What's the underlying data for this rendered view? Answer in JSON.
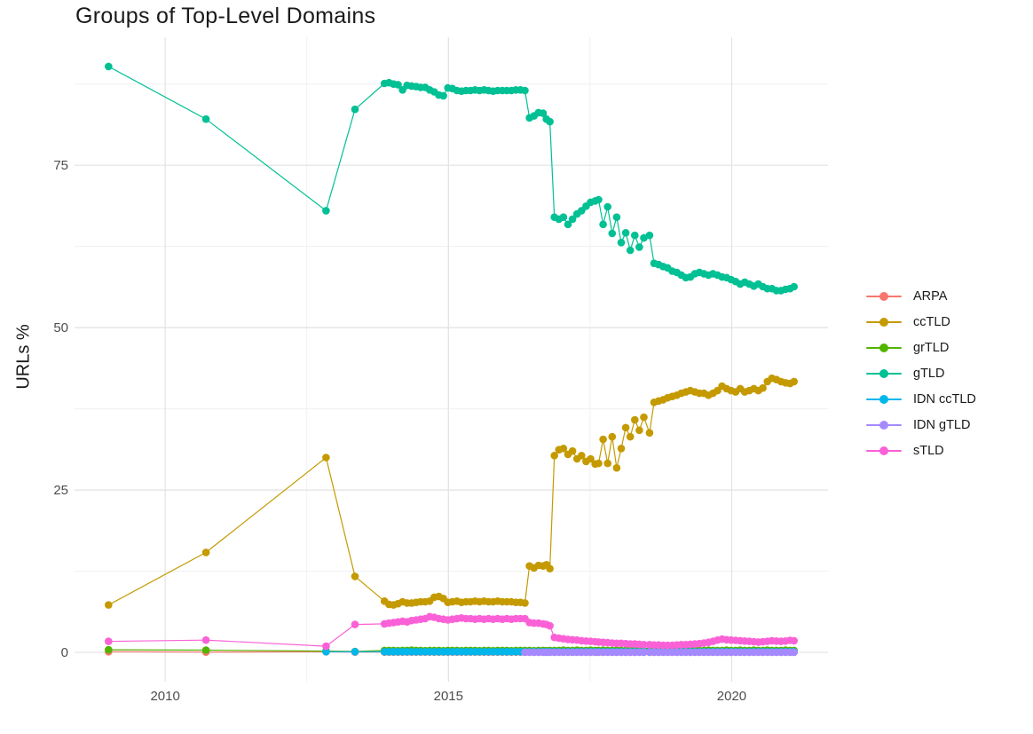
{
  "chart": {
    "title": "Groups of Top-Level Domains"
  },
  "chart_data": {
    "type": "line",
    "title": "Groups of Top-Level Domains",
    "xlabel": "",
    "ylabel": "URLs %",
    "grid": "on",
    "legend_position": "right",
    "xlim": [
      2008.4,
      2021.7
    ],
    "ylim": [
      -4.5,
      94.7
    ],
    "x_major_ticks": [
      2010,
      2015,
      2020
    ],
    "x_tick_labels": [
      "2010",
      "2015",
      "2020"
    ],
    "x_minor_gridlines": [
      2012.5,
      2017.5
    ],
    "y_major_ticks": [
      0,
      25,
      50,
      75
    ],
    "y_tick_labels": [
      "0",
      "25",
      "50",
      "75"
    ],
    "y_minor_gridlines": [
      12.5,
      37.5,
      62.5,
      87.5
    ],
    "colors": {
      "background": "#ffffff",
      "major_grid": "#e2e2e2",
      "minor_grid": "#f0f0f0",
      "tick_text": "#4d4d4d",
      "text": "#1a1a1a"
    },
    "x": [
      2009.0,
      2010.72,
      2012.84,
      2013.35,
      2013.87,
      2013.95,
      2014.03,
      2014.11,
      2014.19,
      2014.27,
      2014.35,
      2014.43,
      2014.51,
      2014.59,
      2014.67,
      2014.75,
      2014.83,
      2014.91,
      2014.99,
      2015.07,
      2015.15,
      2015.23,
      2015.31,
      2015.39,
      2015.47,
      2015.55,
      2015.63,
      2015.71,
      2015.79,
      2015.87,
      2015.95,
      2016.03,
      2016.11,
      2016.19,
      2016.27,
      2016.35,
      2016.43,
      2016.51,
      2016.59,
      2016.67,
      2016.73,
      2016.79,
      2016.87,
      2016.95,
      2017.03,
      2017.11,
      2017.19,
      2017.27,
      2017.35,
      2017.43,
      2017.51,
      2017.59,
      2017.65,
      2017.73,
      2017.81,
      2017.89,
      2017.97,
      2018.05,
      2018.13,
      2018.21,
      2018.29,
      2018.37,
      2018.45,
      2018.55,
      2018.63,
      2018.71,
      2018.79,
      2018.87,
      2018.95,
      2019.03,
      2019.11,
      2019.19,
      2019.27,
      2019.35,
      2019.43,
      2019.51,
      2019.59,
      2019.67,
      2019.75,
      2019.83,
      2019.91,
      2019.99,
      2020.07,
      2020.15,
      2020.23,
      2020.31,
      2020.39,
      2020.47,
      2020.55,
      2020.63,
      2020.71,
      2020.79,
      2020.87,
      2020.95,
      2021.03,
      2021.1
    ],
    "series": [
      {
        "name": "ARPA",
        "color": "#F8766D",
        "values": [
          0.1,
          0.05,
          0.1,
          0.05,
          0.05,
          0.05,
          0.05,
          0.05,
          0.05,
          0.05,
          0.05,
          0.05,
          0.05,
          0.05,
          0.05,
          0.05,
          0.05,
          0.05,
          0.05,
          0.05,
          0.05,
          0.05,
          0.05,
          0.05,
          0.05,
          0.05,
          0.05,
          0.05,
          0.05,
          0.05,
          0.05,
          0.05,
          0.05,
          0.05,
          0.05,
          0.05,
          0.05,
          0.05,
          0.05,
          0.05,
          0.05,
          0.05,
          0.05,
          0.05,
          0.05,
          0.05,
          0.05,
          0.05,
          0.05,
          0.05,
          0.05,
          0.05,
          0.05,
          0.05,
          0.05,
          0.05,
          0.05,
          0.05,
          0.05,
          0.05,
          0.05,
          0.05,
          0.05,
          0.05,
          0.05,
          0.05,
          0.05,
          0.05,
          0.05,
          0.05,
          0.05,
          0.05,
          0.05,
          0.05,
          0.05,
          0.05,
          0.05,
          0.05,
          0.05,
          0.05,
          0.05,
          0.05,
          0.05,
          0.05,
          0.05,
          0.05,
          0.05,
          0.05,
          0.05,
          0.05,
          0.05,
          0.05,
          0.05,
          0.05,
          0.05,
          0.05
        ]
      },
      {
        "name": "ccTLD",
        "color": "#C49A00",
        "values": [
          7.3,
          15.4,
          30.0,
          11.7,
          7.9,
          7.4,
          7.3,
          7.5,
          7.8,
          7.6,
          7.6,
          7.7,
          7.8,
          7.8,
          7.9,
          8.5,
          8.6,
          8.3,
          7.7,
          7.8,
          7.9,
          7.7,
          7.8,
          7.8,
          7.9,
          7.8,
          7.9,
          7.8,
          7.8,
          7.9,
          7.8,
          7.8,
          7.8,
          7.7,
          7.7,
          7.6,
          13.3,
          13.0,
          13.4,
          13.3,
          13.5,
          12.9,
          30.3,
          31.2,
          31.4,
          30.5,
          31.0,
          29.8,
          30.3,
          29.4,
          29.8,
          29.0,
          29.1,
          32.8,
          29.1,
          33.2,
          28.4,
          31.4,
          34.6,
          33.2,
          35.8,
          34.2,
          36.2,
          33.8,
          38.5,
          38.7,
          38.9,
          39.2,
          39.4,
          39.6,
          39.9,
          40.1,
          40.3,
          40.1,
          39.9,
          39.9,
          39.6,
          39.9,
          40.3,
          41.0,
          40.6,
          40.3,
          40.1,
          40.6,
          40.1,
          40.3,
          40.6,
          40.3,
          40.7,
          41.7,
          42.2,
          42.0,
          41.7,
          41.5,
          41.4,
          41.7
        ]
      },
      {
        "name": "grTLD",
        "color": "#53B400",
        "values": [
          0.4,
          0.35,
          0.2,
          0.15,
          0.3,
          0.3,
          0.3,
          0.25,
          0.3,
          0.3,
          0.35,
          0.3,
          0.3,
          0.25,
          0.3,
          0.3,
          0.3,
          0.25,
          0.3,
          0.3,
          0.3,
          0.25,
          0.3,
          0.3,
          0.3,
          0.25,
          0.3,
          0.3,
          0.25,
          0.3,
          0.3,
          0.3,
          0.25,
          0.3,
          0.3,
          0.3,
          0.3,
          0.25,
          0.3,
          0.3,
          0.25,
          0.3,
          0.3,
          0.3,
          0.35,
          0.3,
          0.3,
          0.35,
          0.3,
          0.3,
          0.35,
          0.3,
          0.3,
          0.35,
          0.3,
          0.3,
          0.35,
          0.3,
          0.3,
          0.35,
          0.3,
          0.35,
          0.3,
          0.3,
          0.35,
          0.3,
          0.3,
          0.35,
          0.3,
          0.3,
          0.35,
          0.3,
          0.3,
          0.35,
          0.3,
          0.3,
          0.35,
          0.3,
          0.3,
          0.3,
          0.35,
          0.3,
          0.3,
          0.35,
          0.3,
          0.3,
          0.35,
          0.3,
          0.3,
          0.35,
          0.3,
          0.3,
          0.3,
          0.35,
          0.3,
          0.3
        ]
      },
      {
        "name": "gTLD",
        "color": "#00C094",
        "values": [
          90.2,
          82.1,
          68.0,
          83.6,
          87.6,
          87.7,
          87.5,
          87.4,
          86.6,
          87.3,
          87.2,
          87.1,
          87.0,
          87.0,
          86.6,
          86.3,
          85.8,
          85.7,
          86.9,
          86.8,
          86.5,
          86.4,
          86.5,
          86.5,
          86.6,
          86.5,
          86.6,
          86.5,
          86.4,
          86.5,
          86.5,
          86.5,
          86.5,
          86.6,
          86.6,
          86.5,
          82.3,
          82.6,
          83.1,
          83.0,
          82.1,
          81.7,
          67.0,
          66.7,
          67.0,
          65.9,
          66.7,
          67.5,
          68.0,
          68.7,
          69.3,
          69.5,
          69.7,
          65.9,
          68.6,
          64.5,
          67.0,
          63.1,
          64.6,
          61.9,
          64.2,
          62.4,
          63.8,
          64.2,
          59.9,
          59.7,
          59.4,
          59.2,
          58.7,
          58.5,
          58.1,
          57.7,
          57.8,
          58.3,
          58.5,
          58.3,
          58.1,
          58.3,
          58.1,
          57.8,
          57.7,
          57.4,
          57.1,
          56.7,
          57.0,
          56.7,
          56.4,
          56.7,
          56.3,
          56.0,
          56.0,
          55.7,
          55.7,
          55.9,
          56.0,
          56.3
        ]
      },
      {
        "name": "IDN ccTLD",
        "color": "#00B6EB",
        "values": [
          null,
          null,
          0.1,
          0.1,
          0.1,
          0.1,
          0.1,
          0.1,
          0.1,
          0.1,
          0.1,
          0.1,
          0.1,
          0.1,
          0.1,
          0.1,
          0.1,
          0.1,
          0.1,
          0.1,
          0.1,
          0.1,
          0.1,
          0.1,
          0.1,
          0.1,
          0.1,
          0.1,
          0.1,
          0.1,
          0.1,
          0.1,
          0.1,
          0.1,
          0.1,
          0.1,
          0.1,
          0.1,
          0.1,
          0.1,
          0.1,
          0.1,
          0.1,
          0.1,
          0.1,
          0.1,
          0.1,
          0.1,
          0.1,
          0.1,
          0.1,
          0.1,
          0.1,
          0.1,
          0.1,
          0.1,
          0.1,
          0.1,
          0.1,
          0.1,
          0.1,
          0.1,
          0.1,
          0.1,
          0.1,
          0.1,
          0.1,
          0.1,
          0.1,
          0.1,
          0.1,
          0.1,
          0.1,
          0.1,
          0.1,
          0.1,
          0.1,
          0.1,
          0.1,
          0.1,
          0.1,
          0.1,
          0.1,
          0.1,
          0.1,
          0.1,
          0.1,
          0.1,
          0.1,
          0.1,
          0.1,
          0.1,
          0.1,
          0.1,
          0.1,
          0.1
        ]
      },
      {
        "name": "IDN gTLD",
        "color": "#A58AFF",
        "values": [
          null,
          null,
          null,
          null,
          null,
          null,
          null,
          null,
          null,
          null,
          null,
          null,
          null,
          null,
          null,
          null,
          null,
          null,
          null,
          null,
          null,
          null,
          null,
          null,
          null,
          null,
          null,
          null,
          null,
          null,
          null,
          null,
          null,
          null,
          null,
          0.02,
          0.02,
          0.02,
          0.02,
          0.02,
          0.02,
          0.02,
          0.02,
          0.02,
          0.02,
          0.02,
          0.02,
          0.02,
          0.02,
          0.02,
          0.02,
          0.02,
          0.02,
          0.02,
          0.02,
          0.02,
          0.02,
          0.02,
          0.02,
          0.02,
          0.02,
          0.02,
          0.02,
          0.02,
          0.02,
          0.02,
          0.02,
          0.02,
          0.02,
          0.02,
          0.02,
          0.02,
          0.02,
          0.02,
          0.02,
          0.02,
          0.02,
          0.02,
          0.02,
          0.02,
          0.02,
          0.02,
          0.02,
          0.02,
          0.02,
          0.02,
          0.02,
          0.02,
          0.02,
          0.02,
          0.02,
          0.02,
          0.02,
          0.02,
          0.02,
          0.02
        ]
      },
      {
        "name": "sTLD",
        "color": "#FB61D7",
        "values": [
          1.7,
          1.9,
          0.95,
          4.3,
          4.4,
          4.5,
          4.6,
          4.7,
          4.8,
          4.7,
          4.9,
          5.0,
          5.1,
          5.2,
          5.5,
          5.4,
          5.2,
          5.1,
          5.0,
          5.1,
          5.2,
          5.3,
          5.2,
          5.2,
          5.1,
          5.2,
          5.1,
          5.2,
          5.1,
          5.2,
          5.1,
          5.2,
          5.1,
          5.2,
          5.2,
          5.2,
          4.6,
          4.5,
          4.5,
          4.4,
          4.3,
          4.1,
          2.3,
          2.2,
          2.1,
          2.0,
          1.95,
          1.9,
          1.8,
          1.75,
          1.7,
          1.65,
          1.6,
          1.55,
          1.5,
          1.45,
          1.4,
          1.4,
          1.35,
          1.3,
          1.3,
          1.25,
          1.2,
          1.2,
          1.15,
          1.15,
          1.1,
          1.1,
          1.1,
          1.15,
          1.2,
          1.2,
          1.25,
          1.3,
          1.35,
          1.45,
          1.55,
          1.7,
          1.9,
          2.05,
          1.95,
          1.9,
          1.85,
          1.8,
          1.75,
          1.7,
          1.65,
          1.6,
          1.65,
          1.7,
          1.8,
          1.75,
          1.7,
          1.75,
          1.85,
          1.8
        ]
      }
    ]
  }
}
